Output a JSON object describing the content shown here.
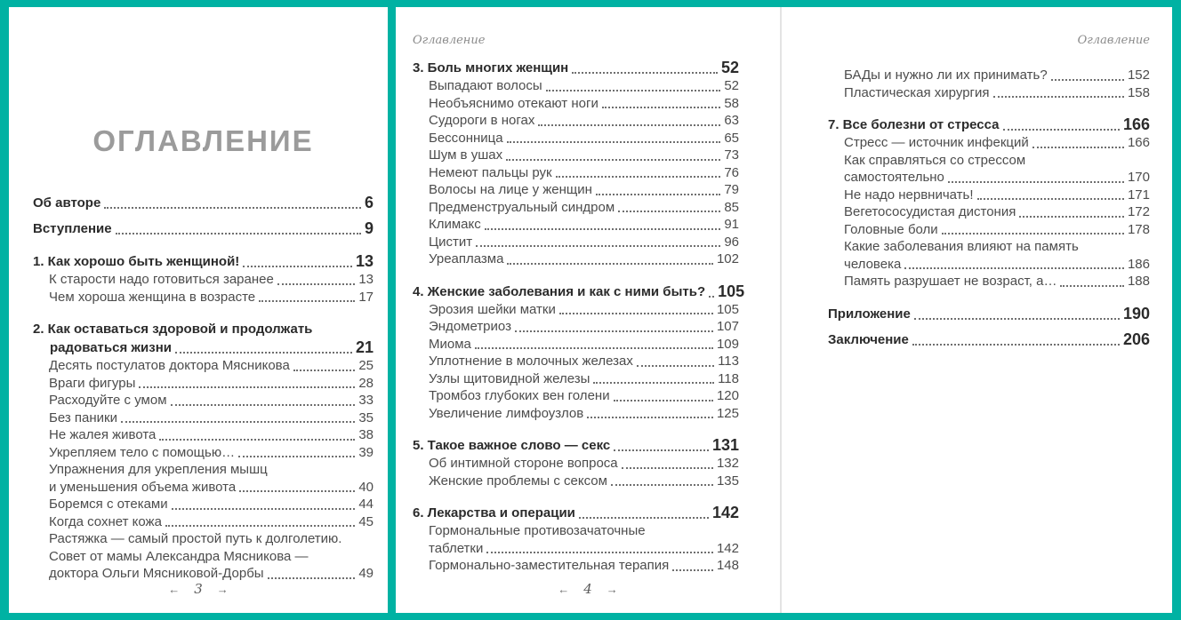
{
  "colors": {
    "background": "#00b2a3",
    "page": "#ffffff",
    "chapter_text": "#2b2b2b",
    "sub_text": "#4c4c4c",
    "title_text": "#9b9b9b"
  },
  "left_page": {
    "title": "ОГЛАВЛЕНИЕ",
    "footer": {
      "left_arrow": "←",
      "page": "3",
      "right_arrow": "→"
    },
    "entries": [
      {
        "type": "chapter",
        "lines": [
          "Об авторе"
        ],
        "page": "6"
      },
      {
        "type": "chapter",
        "gap": "sm",
        "lines": [
          "Вступление"
        ],
        "page": "9"
      },
      {
        "type": "chapter",
        "gap": "lg",
        "lines": [
          "1. Как хорошо быть женщиной!"
        ],
        "page": "13"
      },
      {
        "type": "sub",
        "lines": [
          "К старости надо готовиться заранее"
        ],
        "page": "13"
      },
      {
        "type": "sub",
        "lines": [
          "Чем хороша женщина в возрасте"
        ],
        "page": "17"
      },
      {
        "type": "chapter",
        "gap": "lg",
        "lines": [
          "2. Как оставаться здоровой и продолжать",
          "радоваться жизни"
        ],
        "page": "21"
      },
      {
        "type": "sub",
        "lines": [
          "Десять постулатов доктора Мясникова"
        ],
        "page": "25"
      },
      {
        "type": "sub",
        "lines": [
          "Враги фигуры"
        ],
        "page": "28"
      },
      {
        "type": "sub",
        "lines": [
          "Расходуйте с умом"
        ],
        "page": "33"
      },
      {
        "type": "sub",
        "lines": [
          "Без паники"
        ],
        "page": "35"
      },
      {
        "type": "sub",
        "lines": [
          "Не жалея живота"
        ],
        "page": "38"
      },
      {
        "type": "sub",
        "lines": [
          "Укрепляем тело с помощью…"
        ],
        "page": "39"
      },
      {
        "type": "sub",
        "lines": [
          "Упражнения для укрепления мышц",
          "и уменьшения объема живота"
        ],
        "page": "40"
      },
      {
        "type": "sub",
        "lines": [
          "Боремся с отеками"
        ],
        "page": "44"
      },
      {
        "type": "sub",
        "lines": [
          "Когда сохнет кожа"
        ],
        "page": "45"
      },
      {
        "type": "sub",
        "lines": [
          "Растяжка — самый простой путь к долголетию.",
          "Совет от мамы Александра Мясникова —",
          "доктора Ольги Мясниковой-Дорбы"
        ],
        "page": "49"
      }
    ]
  },
  "middle_page": {
    "running_head": "Оглавление",
    "footer": {
      "left_arrow": "←",
      "page": "4",
      "right_arrow": "→"
    },
    "entries": [
      {
        "type": "chapter",
        "lines": [
          "3. Боль многих женщин"
        ],
        "page": "52"
      },
      {
        "type": "sub",
        "lines": [
          "Выпадают волосы"
        ],
        "page": "52"
      },
      {
        "type": "sub",
        "lines": [
          "Необъяснимо отекают ноги"
        ],
        "page": "58"
      },
      {
        "type": "sub",
        "lines": [
          "Судороги в ногах"
        ],
        "page": "63"
      },
      {
        "type": "sub",
        "lines": [
          "Бессонница"
        ],
        "page": "65"
      },
      {
        "type": "sub",
        "lines": [
          "Шум в ушах"
        ],
        "page": "73"
      },
      {
        "type": "sub",
        "lines": [
          "Немеют пальцы рук"
        ],
        "page": "76"
      },
      {
        "type": "sub",
        "lines": [
          "Волосы на лице у женщин"
        ],
        "page": "79"
      },
      {
        "type": "sub",
        "lines": [
          "Предменструальный синдром"
        ],
        "page": "85"
      },
      {
        "type": "sub",
        "lines": [
          "Климакс"
        ],
        "page": "91"
      },
      {
        "type": "sub",
        "lines": [
          "Цистит"
        ],
        "page": "96"
      },
      {
        "type": "sub",
        "lines": [
          "Уреаплазма"
        ],
        "page": "102"
      },
      {
        "type": "chapter",
        "gap": "lg",
        "lines": [
          "4. Женские заболевания и как с ними быть?"
        ],
        "page": "105"
      },
      {
        "type": "sub",
        "lines": [
          "Эрозия шейки матки"
        ],
        "page": "105"
      },
      {
        "type": "sub",
        "lines": [
          "Эндометриоз"
        ],
        "page": "107"
      },
      {
        "type": "sub",
        "lines": [
          "Миома"
        ],
        "page": "109"
      },
      {
        "type": "sub",
        "lines": [
          "Уплотнение в молочных железах"
        ],
        "page": "113"
      },
      {
        "type": "sub",
        "lines": [
          "Узлы щитовидной железы"
        ],
        "page": "118"
      },
      {
        "type": "sub",
        "lines": [
          "Тромбоз глубоких вен голени"
        ],
        "page": "120"
      },
      {
        "type": "sub",
        "lines": [
          "Увеличение лимфоузлов"
        ],
        "page": "125"
      },
      {
        "type": "chapter",
        "gap": "lg",
        "lines": [
          "5. Такое важное слово — секс"
        ],
        "page": "131"
      },
      {
        "type": "sub",
        "lines": [
          "Об интимной стороне вопроса"
        ],
        "page": "132"
      },
      {
        "type": "sub",
        "lines": [
          "Женские проблемы с сексом"
        ],
        "page": "135"
      },
      {
        "type": "chapter",
        "gap": "lg",
        "lines": [
          "6. Лекарства и операции"
        ],
        "page": "142"
      },
      {
        "type": "sub",
        "lines": [
          "Гормональные противозачаточные",
          "таблетки"
        ],
        "page": "142"
      },
      {
        "type": "sub",
        "lines": [
          "Гормонально-заместительная терапия"
        ],
        "page": "148"
      }
    ]
  },
  "right_page": {
    "running_head": "Оглавление",
    "entries": [
      {
        "type": "sub",
        "lines": [
          "БАДы и нужно ли их принимать?"
        ],
        "page": "152"
      },
      {
        "type": "sub",
        "lines": [
          "Пластическая хирургия"
        ],
        "page": "158"
      },
      {
        "type": "chapter",
        "gap": "lg",
        "lines": [
          "7. Все болезни от стресса"
        ],
        "page": "166"
      },
      {
        "type": "sub",
        "lines": [
          "Стресс — источник инфекций"
        ],
        "page": "166"
      },
      {
        "type": "sub",
        "lines": [
          "Как справляться со стрессом",
          "самостоятельно"
        ],
        "page": "170"
      },
      {
        "type": "sub",
        "lines": [
          "Не надо нервничать!"
        ],
        "page": "171"
      },
      {
        "type": "sub",
        "lines": [
          "Вегетососудистая дистония"
        ],
        "page": "172"
      },
      {
        "type": "sub",
        "lines": [
          "Головные боли"
        ],
        "page": "178"
      },
      {
        "type": "sub",
        "lines": [
          "Какие заболевания влияют на память",
          "человека"
        ],
        "page": "186"
      },
      {
        "type": "sub",
        "lines": [
          "Память разрушает не возраст, а…"
        ],
        "page": "188"
      },
      {
        "type": "chapter",
        "gap": "lg",
        "lines": [
          "Приложение"
        ],
        "page": "190"
      },
      {
        "type": "chapter",
        "gap": "sm",
        "lines": [
          "Заключение"
        ],
        "page": "206"
      }
    ]
  }
}
